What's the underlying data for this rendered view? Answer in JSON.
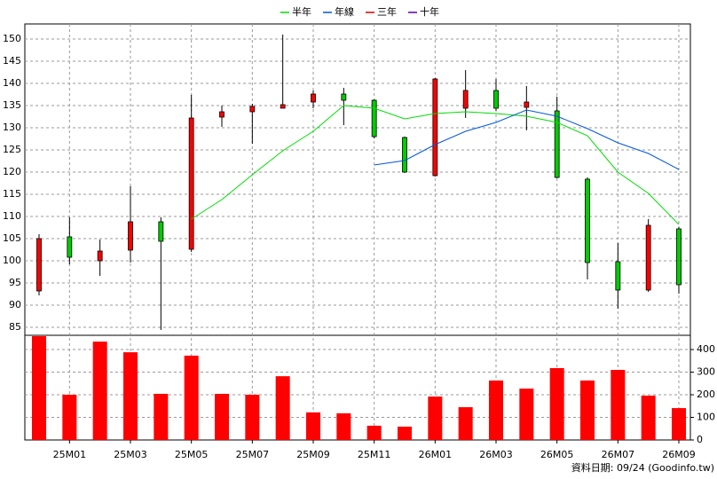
{
  "chart_data": {
    "type": "candlestick",
    "categories": [
      null,
      "25M01",
      null,
      "25M03",
      null,
      "25M05",
      null,
      "25M07",
      null,
      "25M09",
      null,
      "25M11",
      null,
      "26M01",
      null,
      "26M03",
      null,
      "26M05",
      null,
      "26M07",
      null,
      "26M09"
    ],
    "candles": {
      "open": [
        93.2,
        105.4,
        100,
        102.4,
        108.8,
        102.6,
        132.4,
        133.6,
        134.4,
        135.8,
        137.6,
        136.2,
        127.8,
        119.2,
        134.4,
        138.4,
        134.6,
        133.8,
        118.4,
        99.8,
        93.4,
        107.2
      ],
      "high": [
        106,
        109.8,
        104.8,
        116.8,
        109.8,
        137.4,
        135,
        135.4,
        151,
        138.4,
        139,
        136.4,
        128,
        141.2,
        143,
        141,
        139.4,
        137,
        118.8,
        104,
        109.4,
        107.6
      ],
      "low": [
        92.2,
        99.2,
        96.6,
        99.6,
        84.4,
        102,
        130.2,
        126.4,
        134.4,
        134.4,
        130.6,
        127.6,
        119.8,
        119,
        132.2,
        133.8,
        129.4,
        118.6,
        95.8,
        89.2,
        93,
        92.6
      ],
      "close": [
        105,
        100.8,
        102.2,
        108.8,
        104.4,
        132.2,
        133.6,
        134.8,
        135.2,
        137.6,
        136.2,
        128,
        120,
        141,
        138.4,
        134.4,
        135.8,
        118.8,
        99.6,
        93.4,
        108,
        94.6
      ],
      "up_color": "#ff0000",
      "down_color": "#00cc00"
    },
    "series": [
      {
        "name": "半年",
        "color": "#00dd00",
        "values": [
          null,
          null,
          null,
          null,
          null,
          109.4,
          113.8,
          119.4,
          124.8,
          129.2,
          135,
          134.4,
          132,
          133.2,
          133.6,
          133.2,
          132.6,
          131.2,
          128.2,
          120,
          115.2,
          108.2
        ]
      },
      {
        "name": "年線",
        "color": "#0055dd",
        "values": [
          null,
          null,
          null,
          null,
          null,
          null,
          null,
          null,
          null,
          null,
          null,
          121.6,
          122.6,
          126.2,
          129.2,
          131.2,
          134,
          132.6,
          129.8,
          126.6,
          124.2,
          120.6
        ]
      },
      {
        "name": "三年",
        "color": "#dd0000",
        "values": [
          null,
          null,
          null,
          null,
          null,
          null,
          null,
          null,
          null,
          null,
          null,
          null,
          null,
          null,
          null,
          null,
          null,
          null,
          null,
          null,
          null,
          null
        ]
      },
      {
        "name": "十年",
        "color": "#5500aa",
        "values": [
          null,
          null,
          null,
          null,
          null,
          null,
          null,
          null,
          null,
          null,
          null,
          null,
          null,
          null,
          null,
          null,
          null,
          null,
          null,
          null,
          null,
          null
        ]
      }
    ],
    "volume": {
      "color": "#ff0000",
      "axis": "y2",
      "values": [
        459,
        200,
        435,
        388,
        204,
        373,
        204,
        200,
        282,
        122,
        118,
        63,
        59,
        192,
        145,
        263,
        227,
        318,
        263,
        310,
        196,
        141
      ]
    },
    "ylim": [
      83.2,
      153.4
    ],
    "yticks": [
      85,
      90,
      95,
      100,
      105,
      110,
      115,
      120,
      125,
      130,
      135,
      140,
      145,
      150
    ],
    "y2lim": [
      0,
      463
    ],
    "y2ticks": [
      0,
      100,
      200,
      300,
      400
    ],
    "grid": true,
    "source": "資料日期: 09/24  (Goodinfo.tw)"
  }
}
